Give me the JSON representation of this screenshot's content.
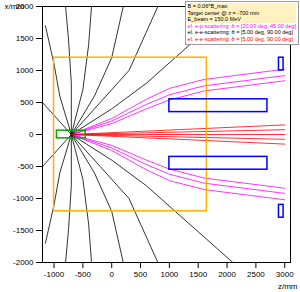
{
  "chart_data": {
    "type": "line",
    "xlabel": "z/mm",
    "ylabel": "x/mm",
    "xlim": [
      -1200,
      3100
    ],
    "ylim": [
      -2000,
      2000
    ],
    "xticks": [
      -1000,
      -500,
      0,
      500,
      1000,
      1500,
      2000,
      2500,
      3000
    ],
    "yticks": [
      -2000,
      -1500,
      -1000,
      -500,
      0,
      500,
      1000,
      1500,
      2000
    ],
    "grid": false,
    "legend": "top-right",
    "annotations": [
      "B = 0.06*B_max",
      "Target center @ z = -700 mm",
      "E_beam = 150.0 MeV"
    ],
    "series": [
      {
        "name": "el. e-p-scattering: θ = [20.00 deg, 45.00 deg]",
        "color": "#ff00ff",
        "tracks": [
          [
            [
              -700,
              0
            ],
            [
              0,
              250
            ],
            [
              600,
              550
            ],
            [
              1000,
              720
            ],
            [
              1600,
              860
            ],
            [
              3000,
              1020
            ]
          ],
          [
            [
              -700,
              0
            ],
            [
              0,
              210
            ],
            [
              600,
              470
            ],
            [
              1000,
              620
            ],
            [
              1600,
              760
            ],
            [
              3000,
              920
            ]
          ],
          [
            [
              -700,
              0
            ],
            [
              0,
              170
            ],
            [
              600,
              400
            ],
            [
              1000,
              540
            ],
            [
              1600,
              680
            ],
            [
              3000,
              840
            ]
          ],
          [
            [
              -700,
              0
            ],
            [
              0,
              -250
            ],
            [
              600,
              -550
            ],
            [
              1000,
              -720
            ],
            [
              1600,
              -860
            ],
            [
              3000,
              -1020
            ]
          ],
          [
            [
              -700,
              0
            ],
            [
              0,
              -210
            ],
            [
              600,
              -470
            ],
            [
              1000,
              -620
            ],
            [
              1600,
              -760
            ],
            [
              3000,
              -920
            ]
          ],
          [
            [
              -700,
              0
            ],
            [
              0,
              -170
            ],
            [
              600,
              -400
            ],
            [
              1000,
              -540
            ],
            [
              1600,
              -680
            ],
            [
              3000,
              -840
            ]
          ]
        ]
      },
      {
        "name": "el. e-e-scattering: θ = [5.00 deg, 90.00 deg]",
        "color": "#000000",
        "tracks": [
          [
            [
              -700,
              0
            ],
            [
              -900,
              600
            ],
            [
              -1000,
              1100
            ],
            [
              -1150,
              1700
            ]
          ],
          [
            [
              -700,
              0
            ],
            [
              -700,
              800
            ],
            [
              -750,
              1500
            ],
            [
              -800,
              2000
            ]
          ],
          [
            [
              -700,
              0
            ],
            [
              -500,
              700
            ],
            [
              -400,
              1400
            ],
            [
              -350,
              2000
            ]
          ],
          [
            [
              -700,
              0
            ],
            [
              -300,
              600
            ],
            [
              0,
              1200
            ],
            [
              200,
              2000
            ]
          ],
          [
            [
              -700,
              0
            ],
            [
              -200,
              500
            ],
            [
              300,
              1000
            ],
            [
              600,
              1600
            ],
            [
              800,
              2000
            ]
          ],
          [
            [
              -700,
              0
            ],
            [
              0,
              400
            ],
            [
              600,
              800
            ],
            [
              1100,
              1200
            ],
            [
              1600,
              1600
            ],
            [
              2100,
              2000
            ]
          ],
          [
            [
              -700,
              0
            ],
            [
              -1000,
              300
            ],
            [
              -1200,
              500
            ]
          ],
          [
            [
              -700,
              0
            ],
            [
              -900,
              -600
            ],
            [
              -1000,
              -1100
            ],
            [
              -1150,
              -1700
            ]
          ],
          [
            [
              -700,
              0
            ],
            [
              -700,
              -800
            ],
            [
              -750,
              -1500
            ],
            [
              -800,
              -2000
            ]
          ],
          [
            [
              -700,
              0
            ],
            [
              -500,
              -700
            ],
            [
              -400,
              -1400
            ],
            [
              -350,
              -2000
            ]
          ],
          [
            [
              -700,
              0
            ],
            [
              -300,
              -600
            ],
            [
              0,
              -1200
            ],
            [
              200,
              -2000
            ]
          ],
          [
            [
              -700,
              0
            ],
            [
              -200,
              -500
            ],
            [
              300,
              -1000
            ],
            [
              600,
              -1600
            ],
            [
              800,
              -2000
            ]
          ],
          [
            [
              -700,
              0
            ],
            [
              0,
              -400
            ],
            [
              600,
              -800
            ],
            [
              1100,
              -1200
            ],
            [
              1600,
              -1600
            ],
            [
              2100,
              -2000
            ]
          ],
          [
            [
              -700,
              0
            ],
            [
              -1000,
              -300
            ],
            [
              -1200,
              -500
            ]
          ]
        ]
      },
      {
        "name": "el. e-e-scattering: θ = [5.00 deg, 90.00 deg]",
        "color": "#ff0000",
        "tracks": [
          [
            [
              -700,
              0
            ],
            [
              3000,
              150
            ]
          ],
          [
            [
              -700,
              0
            ],
            [
              3000,
              75
            ]
          ],
          [
            [
              -700,
              0
            ],
            [
              3000,
              0
            ]
          ],
          [
            [
              -700,
              0
            ],
            [
              3000,
              -75
            ]
          ],
          [
            [
              -700,
              0
            ],
            [
              3000,
              -150
            ]
          ]
        ]
      }
    ],
    "shapes": [
      {
        "z": [
          -1000,
          1650
        ],
        "x": [
          -1200,
          1200
        ],
        "color": "#ffb000"
      },
      {
        "z": [
          -950,
          -450
        ],
        "x": [
          -60,
          60
        ],
        "color": "#00aa00"
      },
      {
        "z": [
          1000,
          2700
        ],
        "x": [
          350,
          550
        ],
        "color": "#0000ff"
      },
      {
        "z": [
          1000,
          2700
        ],
        "x": [
          -550,
          -350
        ],
        "color": "#0000ff"
      },
      {
        "z": [
          2900,
          2980
        ],
        "x": [
          1000,
          1200
        ],
        "color": "#0000ff"
      },
      {
        "z": [
          2900,
          2980
        ],
        "x": [
          -1300,
          -1100
        ],
        "color": "#0000ff"
      }
    ]
  }
}
